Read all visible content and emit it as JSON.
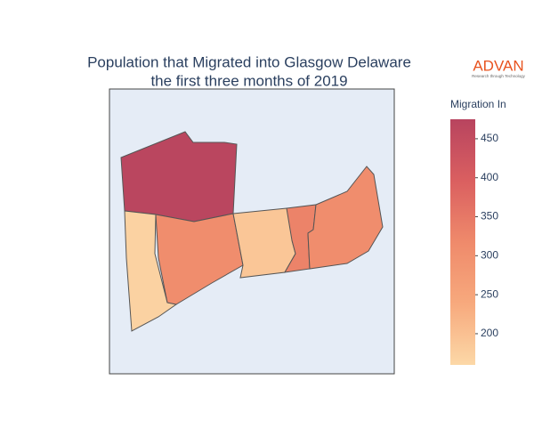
{
  "chart_data": {
    "type": "choropleth",
    "title": [
      "Population that Migrated into Glasgow Delaware",
      "the first three months of 2019"
    ],
    "colorbar_title": "Migration In",
    "categories": [
      null,
      null,
      null,
      null,
      null,
      null
    ],
    "values": [
      470,
      170,
      310,
      190,
      330,
      310
    ],
    "clim": [
      160,
      475
    ],
    "cticks": [
      200,
      250,
      300,
      350,
      400,
      450
    ],
    "colorscale": [
      [
        0,
        "#fcd8a7"
      ],
      [
        0.25,
        "#f7a97d"
      ],
      [
        0.5,
        "#ef8a6b"
      ],
      [
        0.75,
        "#da5f60"
      ],
      [
        1,
        "#b8445f"
      ]
    ],
    "border_color": "#555555",
    "background": "#e5ecf6"
  },
  "logo": {
    "name": "ADVAN",
    "tagline": "Research through Technology"
  }
}
